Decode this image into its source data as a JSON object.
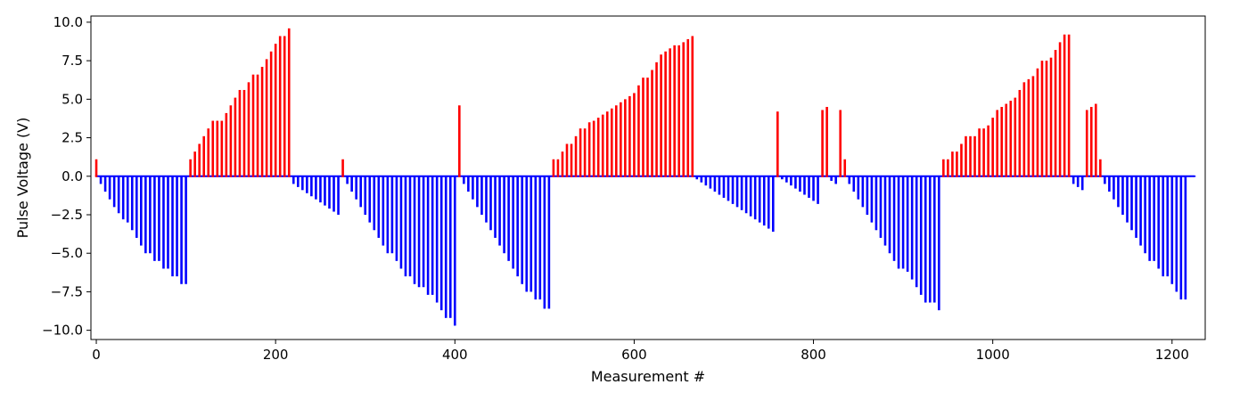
{
  "chart_data": {
    "type": "bar",
    "title": "",
    "xlabel": "Measurement #",
    "ylabel": "Pulse Voltage (V)",
    "xlim": [
      -6,
      1237
    ],
    "ylim": [
      -10.6,
      10.4
    ],
    "xticks": [
      0,
      200,
      400,
      600,
      800,
      1000,
      1200
    ],
    "yticks": [
      -10.0,
      -7.5,
      -5.0,
      -2.5,
      0.0,
      2.5,
      5.0,
      7.5,
      10.0
    ],
    "grid": false,
    "colors": {
      "positive": "#ff0000",
      "negative": "#0000ff",
      "zero": "#0000ff"
    },
    "points": [
      {
        "x": 0,
        "y": 1.1
      },
      {
        "x": 5,
        "y": -0.5
      },
      {
        "x": 10,
        "y": -1.0
      },
      {
        "x": 15,
        "y": -1.5
      },
      {
        "x": 20,
        "y": -2.0
      },
      {
        "x": 25,
        "y": -2.4
      },
      {
        "x": 30,
        "y": -2.8
      },
      {
        "x": 35,
        "y": -3.0
      },
      {
        "x": 40,
        "y": -3.5
      },
      {
        "x": 45,
        "y": -4.0
      },
      {
        "x": 50,
        "y": -4.5
      },
      {
        "x": 55,
        "y": -5.0
      },
      {
        "x": 60,
        "y": -5.0
      },
      {
        "x": 65,
        "y": -5.5
      },
      {
        "x": 70,
        "y": -5.5
      },
      {
        "x": 75,
        "y": -6.0
      },
      {
        "x": 80,
        "y": -6.0
      },
      {
        "x": 85,
        "y": -6.5
      },
      {
        "x": 90,
        "y": -6.5
      },
      {
        "x": 95,
        "y": -7.0
      },
      {
        "x": 100,
        "y": -7.0
      },
      {
        "x": 105,
        "y": 1.1
      },
      {
        "x": 110,
        "y": 1.6
      },
      {
        "x": 115,
        "y": 2.1
      },
      {
        "x": 120,
        "y": 2.6
      },
      {
        "x": 125,
        "y": 3.1
      },
      {
        "x": 130,
        "y": 3.6
      },
      {
        "x": 135,
        "y": 3.6
      },
      {
        "x": 140,
        "y": 3.6
      },
      {
        "x": 145,
        "y": 4.1
      },
      {
        "x": 150,
        "y": 4.6
      },
      {
        "x": 155,
        "y": 5.1
      },
      {
        "x": 160,
        "y": 5.6
      },
      {
        "x": 165,
        "y": 5.6
      },
      {
        "x": 170,
        "y": 6.1
      },
      {
        "x": 175,
        "y": 6.6
      },
      {
        "x": 180,
        "y": 6.6
      },
      {
        "x": 185,
        "y": 7.1
      },
      {
        "x": 190,
        "y": 7.6
      },
      {
        "x": 195,
        "y": 8.1
      },
      {
        "x": 200,
        "y": 8.6
      },
      {
        "x": 205,
        "y": 9.1
      },
      {
        "x": 210,
        "y": 9.1
      },
      {
        "x": 215,
        "y": 9.6
      },
      {
        "x": 220,
        "y": -0.5
      },
      {
        "x": 225,
        "y": -0.7
      },
      {
        "x": 230,
        "y": -0.9
      },
      {
        "x": 235,
        "y": -1.1
      },
      {
        "x": 240,
        "y": -1.3
      },
      {
        "x": 245,
        "y": -1.5
      },
      {
        "x": 250,
        "y": -1.7
      },
      {
        "x": 255,
        "y": -1.9
      },
      {
        "x": 260,
        "y": -2.1
      },
      {
        "x": 265,
        "y": -2.3
      },
      {
        "x": 270,
        "y": -2.5
      },
      {
        "x": 275,
        "y": 1.1
      },
      {
        "x": 280,
        "y": -0.5
      },
      {
        "x": 285,
        "y": -1.0
      },
      {
        "x": 290,
        "y": -1.5
      },
      {
        "x": 295,
        "y": -2.0
      },
      {
        "x": 300,
        "y": -2.5
      },
      {
        "x": 305,
        "y": -3.0
      },
      {
        "x": 310,
        "y": -3.5
      },
      {
        "x": 315,
        "y": -4.0
      },
      {
        "x": 320,
        "y": -4.5
      },
      {
        "x": 325,
        "y": -5.0
      },
      {
        "x": 330,
        "y": -5.0
      },
      {
        "x": 335,
        "y": -5.5
      },
      {
        "x": 340,
        "y": -6.0
      },
      {
        "x": 345,
        "y": -6.5
      },
      {
        "x": 350,
        "y": -6.5
      },
      {
        "x": 355,
        "y": -7.0
      },
      {
        "x": 360,
        "y": -7.2
      },
      {
        "x": 365,
        "y": -7.2
      },
      {
        "x": 370,
        "y": -7.7
      },
      {
        "x": 375,
        "y": -7.7
      },
      {
        "x": 380,
        "y": -8.2
      },
      {
        "x": 385,
        "y": -8.7
      },
      {
        "x": 390,
        "y": -9.2
      },
      {
        "x": 395,
        "y": -9.2
      },
      {
        "x": 400,
        "y": -9.7
      },
      {
        "x": 405,
        "y": 4.6
      },
      {
        "x": 410,
        "y": -0.5
      },
      {
        "x": 415,
        "y": -1.0
      },
      {
        "x": 420,
        "y": -1.5
      },
      {
        "x": 425,
        "y": -2.0
      },
      {
        "x": 430,
        "y": -2.5
      },
      {
        "x": 435,
        "y": -3.0
      },
      {
        "x": 440,
        "y": -3.5
      },
      {
        "x": 445,
        "y": -4.0
      },
      {
        "x": 450,
        "y": -4.5
      },
      {
        "x": 455,
        "y": -5.0
      },
      {
        "x": 460,
        "y": -5.5
      },
      {
        "x": 465,
        "y": -6.0
      },
      {
        "x": 470,
        "y": -6.5
      },
      {
        "x": 475,
        "y": -7.0
      },
      {
        "x": 480,
        "y": -7.5
      },
      {
        "x": 485,
        "y": -7.5
      },
      {
        "x": 490,
        "y": -8.0
      },
      {
        "x": 495,
        "y": -8.0
      },
      {
        "x": 500,
        "y": -8.6
      },
      {
        "x": 505,
        "y": -8.6
      },
      {
        "x": 510,
        "y": 1.1
      },
      {
        "x": 515,
        "y": 1.1
      },
      {
        "x": 520,
        "y": 1.6
      },
      {
        "x": 525,
        "y": 2.1
      },
      {
        "x": 530,
        "y": 2.1
      },
      {
        "x": 535,
        "y": 2.6
      },
      {
        "x": 540,
        "y": 3.1
      },
      {
        "x": 545,
        "y": 3.1
      },
      {
        "x": 550,
        "y": 3.5
      },
      {
        "x": 555,
        "y": 3.6
      },
      {
        "x": 560,
        "y": 3.8
      },
      {
        "x": 565,
        "y": 4.0
      },
      {
        "x": 570,
        "y": 4.2
      },
      {
        "x": 575,
        "y": 4.4
      },
      {
        "x": 580,
        "y": 4.6
      },
      {
        "x": 585,
        "y": 4.8
      },
      {
        "x": 590,
        "y": 5.0
      },
      {
        "x": 595,
        "y": 5.2
      },
      {
        "x": 600,
        "y": 5.4
      },
      {
        "x": 605,
        "y": 5.9
      },
      {
        "x": 610,
        "y": 6.4
      },
      {
        "x": 615,
        "y": 6.4
      },
      {
        "x": 620,
        "y": 6.9
      },
      {
        "x": 625,
        "y": 7.4
      },
      {
        "x": 630,
        "y": 7.9
      },
      {
        "x": 635,
        "y": 8.1
      },
      {
        "x": 640,
        "y": 8.3
      },
      {
        "x": 645,
        "y": 8.5
      },
      {
        "x": 650,
        "y": 8.5
      },
      {
        "x": 655,
        "y": 8.7
      },
      {
        "x": 660,
        "y": 8.9
      },
      {
        "x": 665,
        "y": 9.1
      },
      {
        "x": 670,
        "y": -0.2
      },
      {
        "x": 675,
        "y": -0.4
      },
      {
        "x": 680,
        "y": -0.6
      },
      {
        "x": 685,
        "y": -0.8
      },
      {
        "x": 690,
        "y": -1.0
      },
      {
        "x": 695,
        "y": -1.2
      },
      {
        "x": 700,
        "y": -1.4
      },
      {
        "x": 705,
        "y": -1.6
      },
      {
        "x": 710,
        "y": -1.8
      },
      {
        "x": 715,
        "y": -2.0
      },
      {
        "x": 720,
        "y": -2.2
      },
      {
        "x": 725,
        "y": -2.4
      },
      {
        "x": 730,
        "y": -2.6
      },
      {
        "x": 735,
        "y": -2.8
      },
      {
        "x": 740,
        "y": -3.0
      },
      {
        "x": 745,
        "y": -3.2
      },
      {
        "x": 750,
        "y": -3.4
      },
      {
        "x": 755,
        "y": -3.6
      },
      {
        "x": 760,
        "y": 4.2
      },
      {
        "x": 765,
        "y": -0.2
      },
      {
        "x": 770,
        "y": -0.4
      },
      {
        "x": 775,
        "y": -0.6
      },
      {
        "x": 780,
        "y": -0.8
      },
      {
        "x": 785,
        "y": -1.0
      },
      {
        "x": 790,
        "y": -1.2
      },
      {
        "x": 795,
        "y": -1.4
      },
      {
        "x": 800,
        "y": -1.6
      },
      {
        "x": 805,
        "y": -1.8
      },
      {
        "x": 810,
        "y": 4.3
      },
      {
        "x": 815,
        "y": 4.5
      },
      {
        "x": 820,
        "y": -0.3
      },
      {
        "x": 825,
        "y": -0.5
      },
      {
        "x": 830,
        "y": 4.3
      },
      {
        "x": 835,
        "y": 1.1
      },
      {
        "x": 840,
        "y": -0.5
      },
      {
        "x": 845,
        "y": -1.0
      },
      {
        "x": 850,
        "y": -1.5
      },
      {
        "x": 855,
        "y": -2.0
      },
      {
        "x": 860,
        "y": -2.5
      },
      {
        "x": 865,
        "y": -3.0
      },
      {
        "x": 870,
        "y": -3.5
      },
      {
        "x": 875,
        "y": -4.0
      },
      {
        "x": 880,
        "y": -4.5
      },
      {
        "x": 885,
        "y": -5.0
      },
      {
        "x": 890,
        "y": -5.5
      },
      {
        "x": 895,
        "y": -6.0
      },
      {
        "x": 900,
        "y": -6.0
      },
      {
        "x": 905,
        "y": -6.2
      },
      {
        "x": 910,
        "y": -6.7
      },
      {
        "x": 915,
        "y": -7.2
      },
      {
        "x": 920,
        "y": -7.7
      },
      {
        "x": 925,
        "y": -8.2
      },
      {
        "x": 930,
        "y": -8.2
      },
      {
        "x": 935,
        "y": -8.2
      },
      {
        "x": 940,
        "y": -8.7
      },
      {
        "x": 945,
        "y": 1.1
      },
      {
        "x": 950,
        "y": 1.1
      },
      {
        "x": 955,
        "y": 1.6
      },
      {
        "x": 960,
        "y": 1.6
      },
      {
        "x": 965,
        "y": 2.1
      },
      {
        "x": 970,
        "y": 2.6
      },
      {
        "x": 975,
        "y": 2.6
      },
      {
        "x": 980,
        "y": 2.6
      },
      {
        "x": 985,
        "y": 3.1
      },
      {
        "x": 990,
        "y": 3.1
      },
      {
        "x": 995,
        "y": 3.3
      },
      {
        "x": 1000,
        "y": 3.8
      },
      {
        "x": 1005,
        "y": 4.3
      },
      {
        "x": 1010,
        "y": 4.5
      },
      {
        "x": 1015,
        "y": 4.7
      },
      {
        "x": 1020,
        "y": 4.9
      },
      {
        "x": 1025,
        "y": 5.1
      },
      {
        "x": 1030,
        "y": 5.6
      },
      {
        "x": 1035,
        "y": 6.1
      },
      {
        "x": 1040,
        "y": 6.3
      },
      {
        "x": 1045,
        "y": 6.5
      },
      {
        "x": 1050,
        "y": 7.0
      },
      {
        "x": 1055,
        "y": 7.5
      },
      {
        "x": 1060,
        "y": 7.5
      },
      {
        "x": 1065,
        "y": 7.7
      },
      {
        "x": 1070,
        "y": 8.2
      },
      {
        "x": 1075,
        "y": 8.7
      },
      {
        "x": 1080,
        "y": 9.2
      },
      {
        "x": 1085,
        "y": 9.2
      },
      {
        "x": 1090,
        "y": -0.5
      },
      {
        "x": 1095,
        "y": -0.7
      },
      {
        "x": 1100,
        "y": -0.9
      },
      {
        "x": 1105,
        "y": 4.3
      },
      {
        "x": 1110,
        "y": 4.5
      },
      {
        "x": 1115,
        "y": 4.7
      },
      {
        "x": 1120,
        "y": 1.1
      },
      {
        "x": 1125,
        "y": -0.5
      },
      {
        "x": 1130,
        "y": -1.0
      },
      {
        "x": 1135,
        "y": -1.5
      },
      {
        "x": 1140,
        "y": -2.0
      },
      {
        "x": 1145,
        "y": -2.5
      },
      {
        "x": 1150,
        "y": -3.0
      },
      {
        "x": 1155,
        "y": -3.5
      },
      {
        "x": 1160,
        "y": -4.0
      },
      {
        "x": 1165,
        "y": -4.5
      },
      {
        "x": 1170,
        "y": -5.0
      },
      {
        "x": 1175,
        "y": -5.5
      },
      {
        "x": 1180,
        "y": -5.5
      },
      {
        "x": 1185,
        "y": -6.0
      },
      {
        "x": 1190,
        "y": -6.5
      },
      {
        "x": 1195,
        "y": -6.5
      },
      {
        "x": 1200,
        "y": -7.0
      },
      {
        "x": 1205,
        "y": -7.5
      },
      {
        "x": 1210,
        "y": -8.0
      },
      {
        "x": 1215,
        "y": -8.0
      },
      {
        "x": 1220,
        "y": 0.0
      },
      {
        "x": 1225,
        "y": 0.0
      }
    ]
  }
}
